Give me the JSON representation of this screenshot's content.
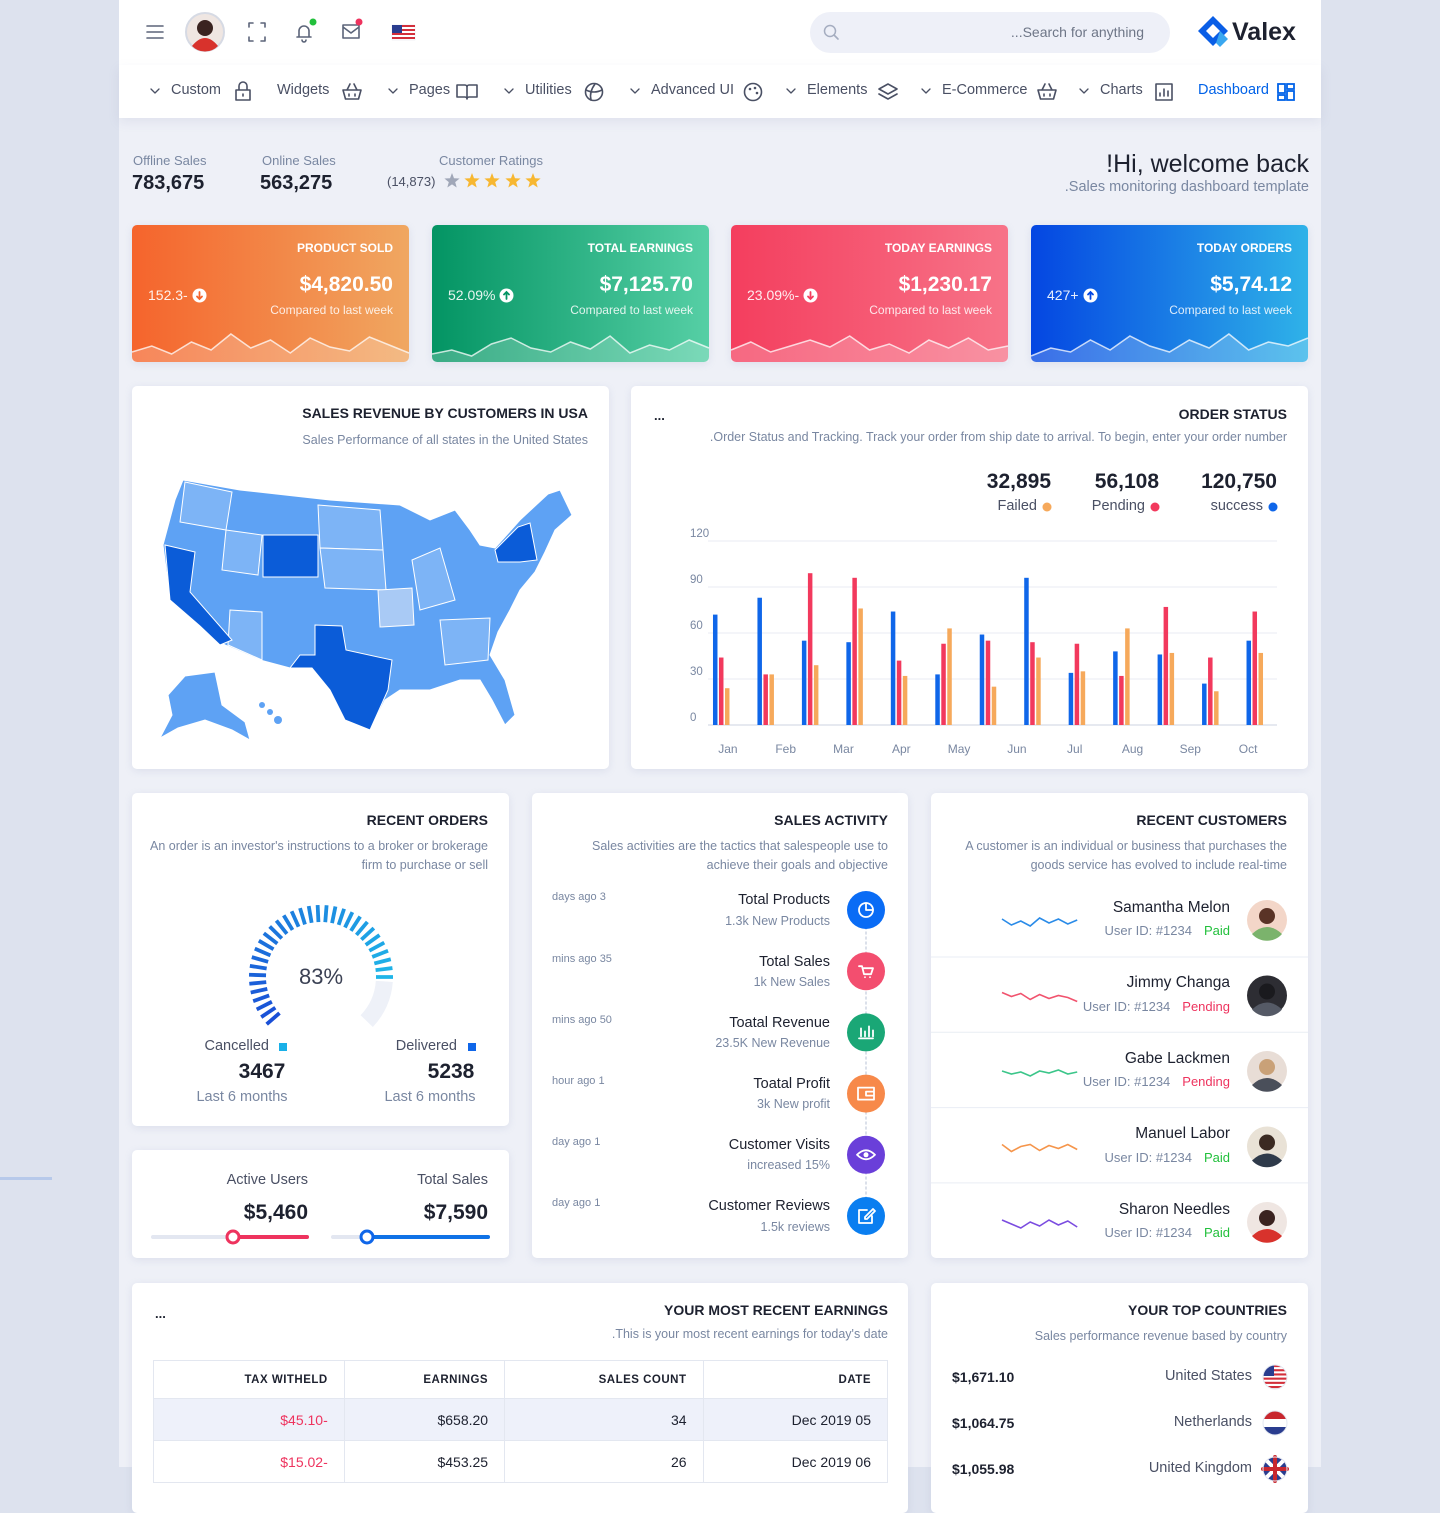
{
  "header": {
    "search_placeholder": "...Search for anything",
    "brand": "Valex"
  },
  "nav": [
    "Custom",
    "Widgets",
    "Pages",
    "Utilities",
    "Advanced UI",
    "Elements",
    "E-Commerce",
    "Charts",
    "Dashboard"
  ],
  "summary": {
    "offline_label": "Offline Sales",
    "offline_value": "783,675",
    "online_label": "Online Sales",
    "online_value": "563,275",
    "ratings_label": "Customer Ratings",
    "ratings_count": "(14,873)"
  },
  "welcome": {
    "title": "!Hi, welcome back",
    "subtitle": ".Sales monitoring dashboard template"
  },
  "kpis": [
    {
      "title": "PRODUCT SOLD",
      "value": "$4,820.50",
      "change": "152.3-",
      "note": "Compared to last week"
    },
    {
      "title": "TOTAL EARNINGS",
      "value": "$7,125.70",
      "change": "52.09%",
      "note": "Compared to last week"
    },
    {
      "title": "TODAY EARNINGS",
      "value": "$1,230.17",
      "change": "23.09%-",
      "note": "Compared to last week"
    },
    {
      "title": "TODAY ORDERS",
      "value": "$5,74.12",
      "change": "427+",
      "note": "Compared to last week"
    }
  ],
  "map_card": {
    "title": "SALES REVENUE BY CUSTOMERS IN USA",
    "subtitle": "Sales Performance of all states in the United States"
  },
  "order_status": {
    "menu": "...",
    "title": "ORDER STATUS",
    "subtitle": ".Order Status and Tracking. Track your order from ship date to arrival. To begin, enter your order number",
    "totals": [
      "32,895",
      "56,108",
      "120,750"
    ]
  },
  "chart_data": {
    "type": "bar",
    "categories": [
      "Jan",
      "Feb",
      "Mar",
      "Apr",
      "May",
      "Jun",
      "Jul",
      "Aug",
      "Sep",
      "Oct",
      null,
      null,
      null
    ],
    "series": [
      {
        "name": "success",
        "color": "#0f66e9",
        "values": [
          72,
          83,
          55,
          54,
          74,
          33,
          59,
          96,
          34,
          48,
          46,
          27,
          55
        ]
      },
      {
        "name": "Pending",
        "color": "#f2395d",
        "values": [
          44,
          33,
          99,
          96,
          42,
          53,
          55,
          54,
          53,
          32,
          77,
          44,
          74
        ]
      },
      {
        "name": "Failed",
        "color": "#f6a95b",
        "values": [
          24,
          33,
          39,
          76,
          32,
          63,
          25,
          44,
          35,
          63,
          47,
          22,
          47
        ]
      }
    ],
    "ylim": [
      0,
      120
    ],
    "yticks": [
      0,
      30,
      60,
      90,
      120
    ],
    "grid": true
  },
  "recent_orders": {
    "title": "RECENT ORDERS",
    "subtitle": "An order is an investor's instructions to a broker or brokerage firm to purchase or sell",
    "percent": "83%",
    "cancelled": {
      "label": "Cancelled",
      "value": "3467",
      "period": "Last 6 months"
    },
    "delivered": {
      "label": "Delivered",
      "value": "5238",
      "period": "Last 6 months"
    }
  },
  "users": {
    "active_label": "Active Users",
    "active_value": "$5,460",
    "total_label": "Total Sales",
    "total_value": "$7,590"
  },
  "sales_activity": {
    "title": "SALES ACTIVITY",
    "subtitle": "Sales activities are the tactics that salespeople use to achieve their goals and objective",
    "items": [
      {
        "time": "days ago 3",
        "title": "Total Products",
        "detail": "1.3k New Products"
      },
      {
        "time": "mins ago 35",
        "title": "Total Sales",
        "detail": "1k New Sales"
      },
      {
        "time": "mins ago 50",
        "title": "Toatal Revenue",
        "detail": "23.5K New Revenue"
      },
      {
        "time": "hour ago 1",
        "title": "Toatal Profit",
        "detail": "3k New profit"
      },
      {
        "time": "day ago 1",
        "title": "Customer Visits",
        "detail": "increased 15%"
      },
      {
        "time": "day ago 1",
        "title": "Customer Reviews",
        "detail": "1.5k reviews"
      }
    ]
  },
  "recent_customers": {
    "title": "RECENT CUSTOMERS",
    "subtitle": "A customer is an individual or business that purchases the goods service has evolved to include real-time",
    "items": [
      {
        "name": "Samantha Melon",
        "id": "User ID: #1234",
        "status": "Paid",
        "color": "#22c03c"
      },
      {
        "name": "Jimmy Changa",
        "id": "User ID: #1234",
        "status": "Pending",
        "color": "#ee335e"
      },
      {
        "name": "Gabe Lackmen",
        "id": "User ID: #1234",
        "status": "Pending",
        "color": "#ee335e"
      },
      {
        "name": "Manuel Labor",
        "id": "User ID: #1234",
        "status": "Paid",
        "color": "#22c03c"
      },
      {
        "name": "Sharon Needles",
        "id": "User ID: #1234",
        "status": "Paid",
        "color": "#22c03c"
      }
    ]
  },
  "earnings": {
    "menu": "...",
    "title": "YOUR MOST RECENT EARNINGS",
    "subtitle": ".This is your most recent earnings for today's date",
    "columns": [
      "TAX WITHELD",
      "EARNINGS",
      "SALES COUNT",
      "DATE"
    ],
    "rows": [
      [
        "$45.10-",
        "$658.20",
        "34",
        "Dec 2019 05"
      ],
      [
        "$15.02-",
        "$453.25",
        "26",
        "Dec 2019 06"
      ]
    ]
  },
  "countries": {
    "title": "YOUR TOP COUNTRIES",
    "subtitle": "Sales performance revenue based by country",
    "items": [
      {
        "value": "$1,671.10",
        "name": "United States"
      },
      {
        "value": "$1,064.75",
        "name": "Netherlands"
      },
      {
        "value": "$1,055.98",
        "name": "United Kingdom"
      }
    ]
  }
}
